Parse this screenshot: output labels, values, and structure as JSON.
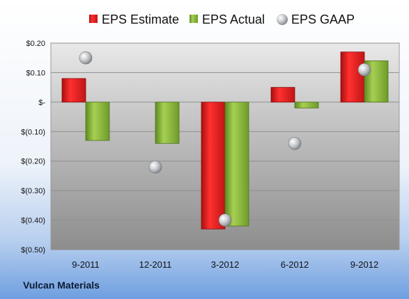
{
  "chart_data": {
    "type": "bar",
    "categories": [
      "9-2011",
      "12-2011",
      "3-2012",
      "6-2012",
      "9-2012"
    ],
    "series": [
      {
        "name": "EPS Estimate",
        "kind": "bar",
        "color": "#e02020",
        "values": [
          0.08,
          null,
          -0.43,
          0.05,
          0.17
        ]
      },
      {
        "name": "EPS Actual",
        "kind": "bar",
        "color": "#8cbd3a",
        "values": [
          -0.13,
          -0.14,
          -0.42,
          -0.02,
          0.14
        ]
      },
      {
        "name": "EPS GAAP",
        "kind": "marker",
        "color": "#b9bcbf",
        "values": [
          0.15,
          -0.22,
          -0.4,
          -0.14,
          0.11
        ]
      }
    ],
    "y_ticks": [
      {
        "value": 0.2,
        "label": "$0.20"
      },
      {
        "value": 0.1,
        "label": "$0.10"
      },
      {
        "value": 0.0,
        "label": "$-"
      },
      {
        "value": -0.1,
        "label": "$(0.10)"
      },
      {
        "value": -0.2,
        "label": "$(0.20)"
      },
      {
        "value": -0.3,
        "label": "$(0.30)"
      },
      {
        "value": -0.4,
        "label": "$(0.40)"
      },
      {
        "value": -0.5,
        "label": "$(0.50)"
      }
    ],
    "ylim": [
      -0.5,
      0.2
    ],
    "grid": true,
    "legend_position": "top"
  },
  "company": "Vulcan Materials"
}
